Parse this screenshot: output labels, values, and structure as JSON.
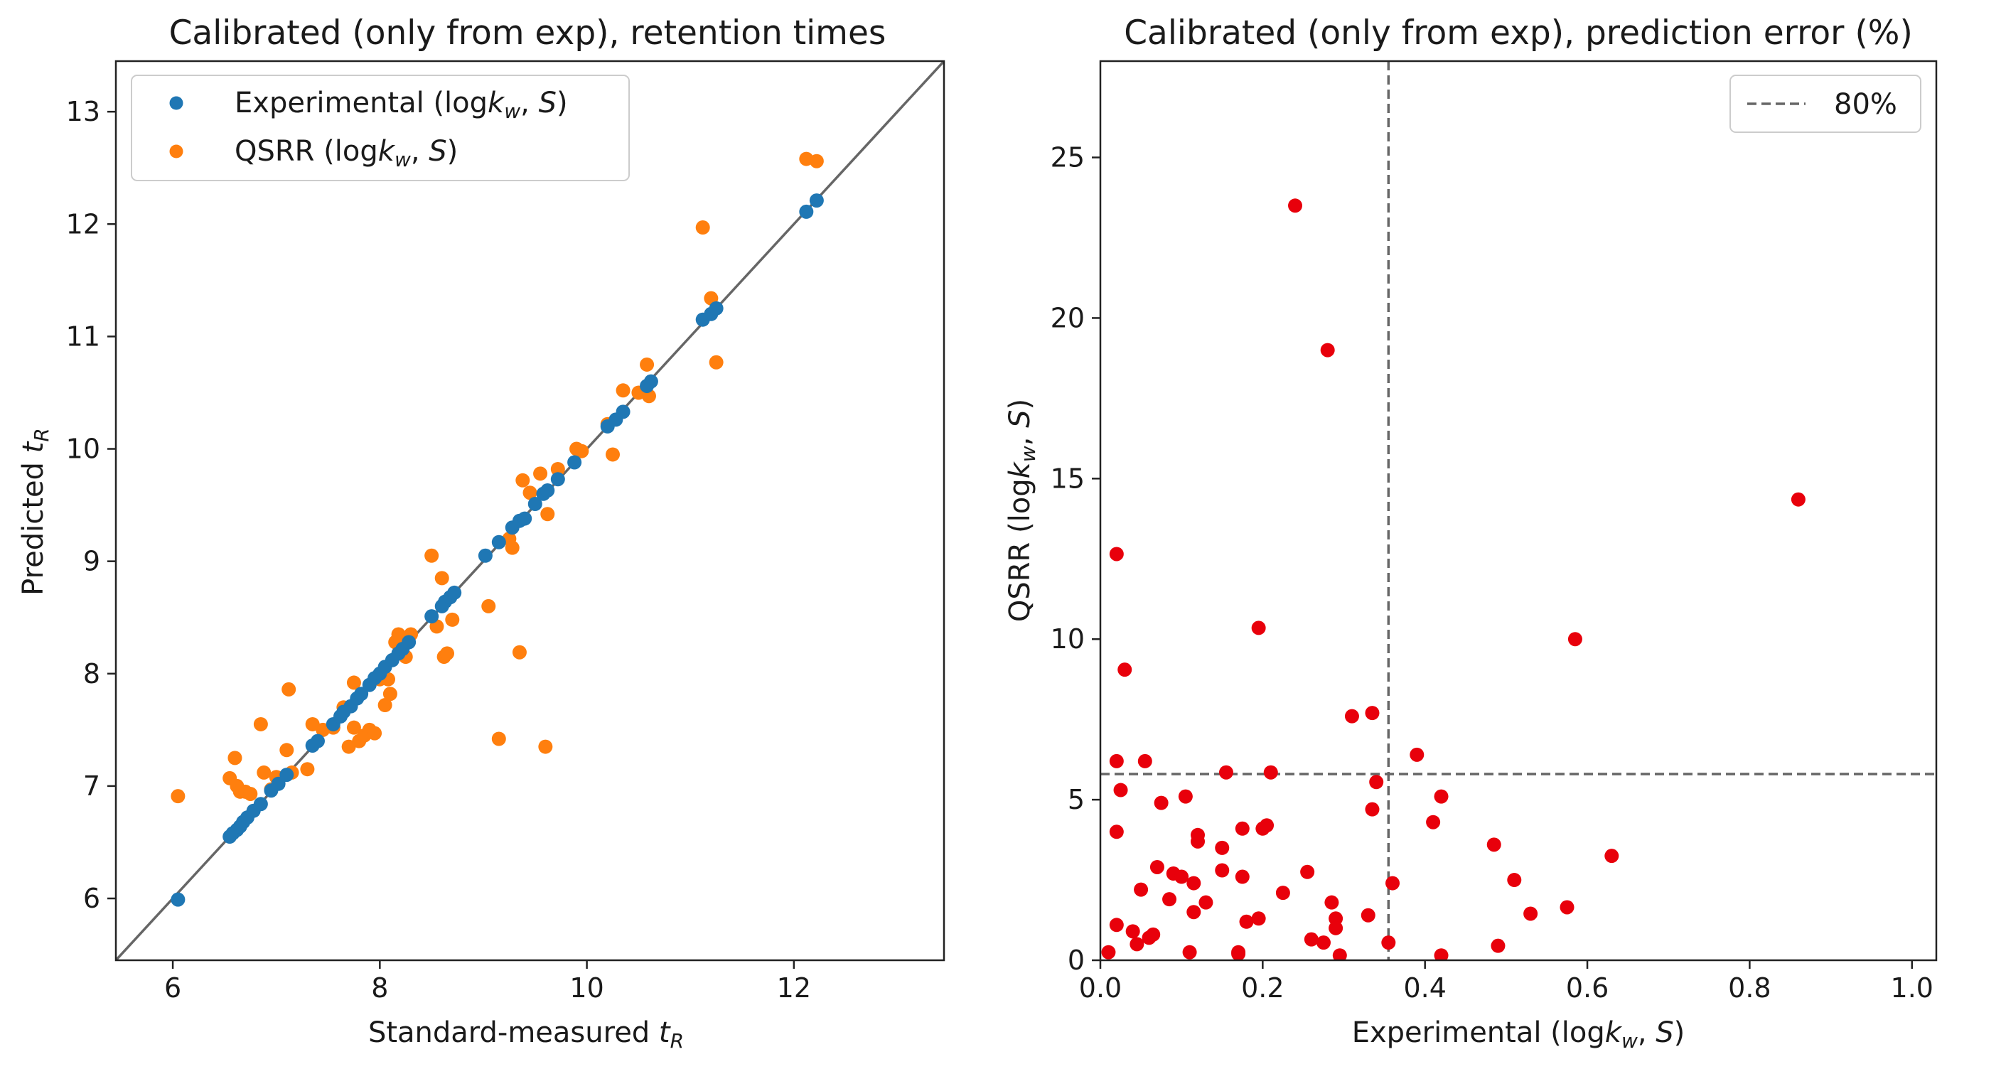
{
  "chart_data": [
    {
      "type": "scatter",
      "title": "Calibrated (only from exp), retention times",
      "xlabel": "Standard-measured tR",
      "ylabel": "Predicted tR",
      "xlim": [
        5.45,
        13.45
      ],
      "ylim": [
        5.45,
        13.45
      ],
      "x_ticks": [
        6,
        8,
        10,
        12
      ],
      "y_ticks": [
        6,
        7,
        8,
        9,
        10,
        11,
        12,
        13
      ],
      "diagonal": true,
      "legend_position": "upper-left",
      "series": [
        {
          "name": "Experimental (logkw, S)",
          "legend_label": {
            "prefix": "Experimental (log",
            "k": "k",
            "sub": "w",
            "sep": ", ",
            "s": "S",
            "suffix": ")"
          },
          "color": "#1f77b4",
          "points": [
            [
              6.05,
              5.99
            ],
            [
              6.55,
              6.55
            ],
            [
              6.58,
              6.58
            ],
            [
              6.62,
              6.61
            ],
            [
              6.65,
              6.64
            ],
            [
              6.68,
              6.68
            ],
            [
              6.72,
              6.72
            ],
            [
              6.78,
              6.78
            ],
            [
              6.85,
              6.84
            ],
            [
              6.95,
              6.96
            ],
            [
              7.02,
              7.02
            ],
            [
              7.1,
              7.1
            ],
            [
              7.35,
              7.36
            ],
            [
              7.4,
              7.4
            ],
            [
              7.55,
              7.55
            ],
            [
              7.62,
              7.62
            ],
            [
              7.65,
              7.66
            ],
            [
              7.72,
              7.71
            ],
            [
              7.78,
              7.78
            ],
            [
              7.82,
              7.82
            ],
            [
              7.9,
              7.9
            ],
            [
              7.95,
              7.96
            ],
            [
              8.0,
              8.0
            ],
            [
              8.05,
              8.06
            ],
            [
              8.12,
              8.12
            ],
            [
              8.18,
              8.18
            ],
            [
              8.22,
              8.22
            ],
            [
              8.28,
              8.28
            ],
            [
              8.5,
              8.51
            ],
            [
              8.6,
              8.6
            ],
            [
              8.63,
              8.64
            ],
            [
              8.68,
              8.68
            ],
            [
              8.72,
              8.72
            ],
            [
              9.02,
              9.05
            ],
            [
              9.15,
              9.17
            ],
            [
              9.28,
              9.3
            ],
            [
              9.35,
              9.36
            ],
            [
              9.4,
              9.38
            ],
            [
              9.5,
              9.51
            ],
            [
              9.58,
              9.6
            ],
            [
              9.62,
              9.63
            ],
            [
              9.72,
              9.73
            ],
            [
              9.88,
              9.88
            ],
            [
              10.2,
              10.2
            ],
            [
              10.28,
              10.26
            ],
            [
              10.35,
              10.33
            ],
            [
              10.58,
              10.56
            ],
            [
              10.62,
              10.6
            ],
            [
              11.12,
              11.15
            ],
            [
              11.2,
              11.2
            ],
            [
              11.25,
              11.25
            ],
            [
              12.12,
              12.11
            ],
            [
              12.22,
              12.21
            ]
          ]
        },
        {
          "name": "QSRR (logkw, S)",
          "legend_label": {
            "prefix": "QSRR (log",
            "k": "k",
            "sub": "w",
            "sep": ", ",
            "s": "S",
            "suffix": ")"
          },
          "color": "#ff7f0e",
          "points": [
            [
              6.05,
              6.91
            ],
            [
              6.55,
              7.07
            ],
            [
              6.6,
              7.25
            ],
            [
              6.62,
              7.0
            ],
            [
              6.65,
              6.95
            ],
            [
              6.7,
              6.95
            ],
            [
              6.75,
              6.93
            ],
            [
              6.85,
              7.55
            ],
            [
              6.88,
              7.12
            ],
            [
              6.95,
              6.97
            ],
            [
              7.0,
              7.08
            ],
            [
              7.1,
              7.32
            ],
            [
              7.12,
              7.86
            ],
            [
              7.15,
              7.12
            ],
            [
              7.3,
              7.15
            ],
            [
              7.35,
              7.55
            ],
            [
              7.45,
              7.5
            ],
            [
              7.55,
              7.52
            ],
            [
              7.65,
              7.7
            ],
            [
              7.7,
              7.35
            ],
            [
              7.75,
              7.92
            ],
            [
              7.75,
              7.52
            ],
            [
              7.8,
              7.4
            ],
            [
              7.85,
              7.45
            ],
            [
              7.9,
              7.5
            ],
            [
              7.95,
              7.47
            ],
            [
              8.0,
              7.95
            ],
            [
              8.05,
              7.72
            ],
            [
              8.08,
              7.95
            ],
            [
              8.1,
              7.82
            ],
            [
              8.15,
              8.28
            ],
            [
              8.18,
              8.35
            ],
            [
              8.2,
              8.3
            ],
            [
              8.25,
              8.15
            ],
            [
              8.3,
              8.35
            ],
            [
              8.5,
              9.05
            ],
            [
              8.55,
              8.42
            ],
            [
              8.6,
              8.85
            ],
            [
              8.62,
              8.15
            ],
            [
              8.65,
              8.18
            ],
            [
              8.7,
              8.48
            ],
            [
              9.05,
              8.6
            ],
            [
              9.15,
              7.42
            ],
            [
              9.25,
              9.2
            ],
            [
              9.28,
              9.12
            ],
            [
              9.35,
              8.19
            ],
            [
              9.38,
              9.72
            ],
            [
              9.45,
              9.61
            ],
            [
              9.55,
              9.78
            ],
            [
              9.6,
              7.35
            ],
            [
              9.62,
              9.42
            ],
            [
              9.72,
              9.82
            ],
            [
              9.9,
              10.0
            ],
            [
              9.95,
              9.98
            ],
            [
              10.2,
              10.22
            ],
            [
              10.25,
              9.95
            ],
            [
              10.35,
              10.52
            ],
            [
              10.5,
              10.5
            ],
            [
              10.58,
              10.75
            ],
            [
              10.6,
              10.47
            ],
            [
              11.12,
              11.97
            ],
            [
              11.2,
              11.34
            ],
            [
              11.25,
              10.77
            ],
            [
              12.12,
              12.58
            ],
            [
              12.22,
              12.56
            ]
          ]
        }
      ]
    },
    {
      "type": "scatter",
      "title": "Calibrated (only from exp), prediction error (%)",
      "xlabel": "Experimental (logkw, S)",
      "ylabel": "QSRR (logkw, S)",
      "xlim": [
        0.0,
        1.03
      ],
      "ylim": [
        0.0,
        28.0
      ],
      "x_ticks": [
        0.0,
        0.2,
        0.4,
        0.6,
        0.8,
        1.0
      ],
      "y_ticks": [
        0,
        5,
        10,
        15,
        20,
        25
      ],
      "threshold_lines": {
        "x": 0.355,
        "y": 5.8,
        "label": "80%"
      },
      "legend_position": "upper-right",
      "series": [
        {
          "name": "prediction error",
          "color": "#e8000b",
          "points": [
            [
              0.01,
              0.25
            ],
            [
              0.02,
              12.65
            ],
            [
              0.02,
              6.2
            ],
            [
              0.02,
              4.0
            ],
            [
              0.02,
              1.1
            ],
            [
              0.025,
              5.3
            ],
            [
              0.03,
              9.05
            ],
            [
              0.04,
              0.9
            ],
            [
              0.045,
              0.5
            ],
            [
              0.05,
              2.2
            ],
            [
              0.055,
              6.2
            ],
            [
              0.06,
              0.7
            ],
            [
              0.065,
              0.8
            ],
            [
              0.07,
              2.9
            ],
            [
              0.075,
              4.9
            ],
            [
              0.085,
              1.9
            ],
            [
              0.09,
              2.7
            ],
            [
              0.1,
              2.6
            ],
            [
              0.105,
              5.1
            ],
            [
              0.11,
              0.25
            ],
            [
              0.115,
              2.4
            ],
            [
              0.115,
              1.5
            ],
            [
              0.12,
              3.7
            ],
            [
              0.12,
              3.9
            ],
            [
              0.13,
              1.8
            ],
            [
              0.15,
              3.5
            ],
            [
              0.15,
              2.8
            ],
            [
              0.155,
              5.85
            ],
            [
              0.17,
              0.25
            ],
            [
              0.17,
              0.2
            ],
            [
              0.175,
              4.1
            ],
            [
              0.175,
              2.6
            ],
            [
              0.18,
              1.2
            ],
            [
              0.195,
              10.35
            ],
            [
              0.195,
              1.3
            ],
            [
              0.2,
              4.1
            ],
            [
              0.205,
              4.2
            ],
            [
              0.21,
              5.85
            ],
            [
              0.225,
              2.1
            ],
            [
              0.24,
              23.5
            ],
            [
              0.255,
              2.75
            ],
            [
              0.26,
              0.65
            ],
            [
              0.275,
              0.55
            ],
            [
              0.28,
              19.0
            ],
            [
              0.285,
              1.8
            ],
            [
              0.29,
              1.3
            ],
            [
              0.29,
              1.0
            ],
            [
              0.295,
              0.15
            ],
            [
              0.31,
              7.6
            ],
            [
              0.33,
              1.4
            ],
            [
              0.335,
              7.7
            ],
            [
              0.335,
              4.7
            ],
            [
              0.34,
              5.55
            ],
            [
              0.355,
              0.55
            ],
            [
              0.36,
              2.4
            ],
            [
              0.39,
              6.4
            ],
            [
              0.41,
              4.3
            ],
            [
              0.42,
              5.1
            ],
            [
              0.42,
              0.15
            ],
            [
              0.485,
              3.6
            ],
            [
              0.49,
              0.45
            ],
            [
              0.51,
              2.5
            ],
            [
              0.53,
              1.45
            ],
            [
              0.575,
              1.65
            ],
            [
              0.585,
              10.0
            ],
            [
              0.63,
              3.25
            ],
            [
              0.86,
              14.35
            ]
          ]
        }
      ]
    }
  ]
}
